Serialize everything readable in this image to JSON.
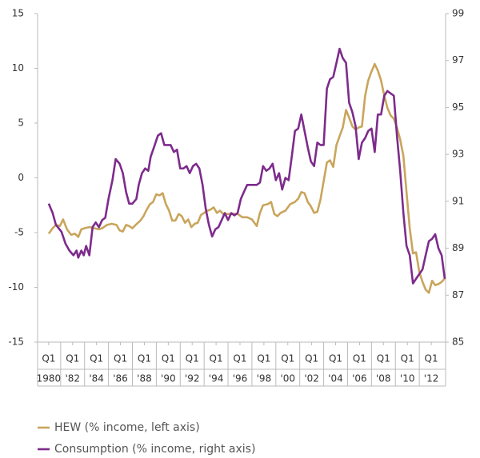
{
  "chart_data": {
    "type": "line",
    "xlim": [
      1979.07,
      2013.2
    ],
    "xticks": [
      {
        "value": 1980,
        "label": "1980"
      },
      {
        "value": 1982,
        "label": "'82"
      },
      {
        "value": 1984,
        "label": "'84"
      },
      {
        "value": 1986,
        "label": "'86"
      },
      {
        "value": 1988,
        "label": "'88"
      },
      {
        "value": 1990,
        "label": "'90"
      },
      {
        "value": 1992,
        "label": "'92"
      },
      {
        "value": 1994,
        "label": "'94"
      },
      {
        "value": 1996,
        "label": "'96"
      },
      {
        "value": 1998,
        "label": "'98"
      },
      {
        "value": 2000,
        "label": "'00"
      },
      {
        "value": 2002,
        "label": "'02"
      },
      {
        "value": 2004,
        "label": "'04"
      },
      {
        "value": 2006,
        "label": "'06"
      },
      {
        "value": 2008,
        "label": "'08"
      },
      {
        "value": 2010,
        "label": "'10"
      },
      {
        "value": 2012,
        "label": "'12"
      }
    ],
    "xtick_sublabel": "Q1",
    "ylim": [
      -15,
      15
    ],
    "yticks": [
      -15,
      -10,
      -5,
      0,
      5,
      10,
      15
    ],
    "y2lim": [
      85,
      99
    ],
    "y2ticks": [
      85,
      87,
      89,
      91,
      93,
      95,
      97,
      99
    ],
    "series": [
      {
        "name": "HEW (% income, left axis)",
        "color": "#c9a55c",
        "axis": "y",
        "x": [
          1980.0,
          1980.33,
          1980.6,
          1980.93,
          1981.2,
          1981.53,
          1981.87,
          1982.2,
          1982.47,
          1982.73,
          1983.0,
          1983.4,
          1983.8,
          1984.2,
          1984.47,
          1984.87,
          1985.27,
          1985.67,
          1985.93,
          1986.2,
          1986.47,
          1986.73,
          1987.0,
          1987.27,
          1987.67,
          1987.93,
          1988.2,
          1988.47,
          1988.73,
          1989.0,
          1989.27,
          1989.53,
          1989.8,
          1990.07,
          1990.33,
          1990.6,
          1990.87,
          1991.13,
          1991.4,
          1991.67,
          1991.93,
          1992.2,
          1992.47,
          1992.73,
          1993.0,
          1993.27,
          1993.53,
          1993.8,
          1994.07,
          1994.33,
          1994.6,
          1995.0,
          1995.4,
          1995.8,
          1996.2,
          1996.6,
          1997.0,
          1997.4,
          1997.67,
          1997.93,
          1998.33,
          1998.6,
          1998.87,
          1999.13,
          1999.4,
          1999.8,
          2000.2,
          2000.6,
          2000.87,
          2001.13,
          2001.4,
          2001.67,
          2001.93,
          2002.2,
          2002.47,
          2002.73,
          2003.0,
          2003.27,
          2003.53,
          2003.8,
          2004.07,
          2004.33,
          2004.6,
          2004.87,
          2005.13,
          2005.4,
          2005.67,
          2005.93,
          2006.2,
          2006.47,
          2006.73,
          2007.0,
          2007.27,
          2007.53,
          2007.8,
          2008.07,
          2008.33,
          2008.6,
          2008.87,
          2009.13,
          2009.4,
          2009.67,
          2009.93,
          2010.2,
          2010.47,
          2010.73,
          2011.0,
          2011.27,
          2011.53,
          2011.8,
          2012.07,
          2012.33,
          2012.6,
          2012.87,
          2013.13
        ],
        "values": [
          -5.1,
          -4.6,
          -4.3,
          -4.4,
          -3.8,
          -4.7,
          -5.2,
          -5.1,
          -5.4,
          -4.7,
          -4.6,
          -4.5,
          -4.6,
          -4.7,
          -4.6,
          -4.3,
          -4.2,
          -4.3,
          -4.8,
          -4.9,
          -4.3,
          -4.4,
          -4.6,
          -4.3,
          -3.9,
          -3.5,
          -2.9,
          -2.4,
          -2.2,
          -1.5,
          -1.6,
          -1.4,
          -2.4,
          -3.0,
          -3.9,
          -3.9,
          -3.3,
          -3.5,
          -4.1,
          -3.8,
          -4.5,
          -4.2,
          -4.1,
          -3.4,
          -3.2,
          -3.0,
          -2.9,
          -2.7,
          -3.2,
          -3.0,
          -3.3,
          -3.3,
          -3.3,
          -3.3,
          -3.6,
          -3.6,
          -3.8,
          -4.4,
          -3.2,
          -2.5,
          -2.4,
          -2.2,
          -3.3,
          -3.5,
          -3.2,
          -3.0,
          -2.4,
          -2.2,
          -1.9,
          -1.3,
          -1.4,
          -2.2,
          -2.6,
          -3.2,
          -3.1,
          -2.0,
          -0.3,
          1.4,
          1.6,
          1.0,
          3.0,
          3.8,
          4.6,
          6.2,
          5.5,
          4.7,
          4.4,
          4.6,
          4.7,
          7.5,
          8.9,
          9.7,
          10.4,
          9.8,
          8.9,
          7.5,
          6.4,
          5.7,
          5.4,
          4.6,
          3.5,
          2.0,
          -1.3,
          -4.6,
          -6.9,
          -6.8,
          -8.6,
          -9.5,
          -10.2,
          -10.5,
          -9.4,
          -9.8,
          -9.7,
          -9.5,
          -9.2
        ]
      },
      {
        "name": "Consumption (% income, right axis)",
        "color": "#7d2b8c",
        "axis": "y2",
        "x": [
          1980.0,
          1980.33,
          1980.6,
          1981.07,
          1981.4,
          1981.73,
          1982.07,
          1982.33,
          1982.47,
          1982.73,
          1982.93,
          1983.13,
          1983.4,
          1983.67,
          1983.93,
          1984.2,
          1984.47,
          1984.73,
          1985.0,
          1985.33,
          1985.6,
          1985.93,
          1986.2,
          1986.47,
          1986.73,
          1987.0,
          1987.33,
          1987.53,
          1987.8,
          1988.07,
          1988.33,
          1988.53,
          1988.87,
          1989.13,
          1989.4,
          1989.67,
          1989.93,
          1990.2,
          1990.47,
          1990.73,
          1991.0,
          1991.27,
          1991.53,
          1991.8,
          1992.07,
          1992.33,
          1992.6,
          1992.87,
          1993.13,
          1993.4,
          1993.67,
          1993.93,
          1994.2,
          1994.47,
          1994.73,
          1995.0,
          1995.27,
          1995.53,
          1995.8,
          1996.07,
          1996.33,
          1996.6,
          1996.87,
          1997.13,
          1997.4,
          1997.67,
          1997.93,
          1998.2,
          1998.47,
          1998.73,
          1999.0,
          1999.27,
          1999.53,
          1999.8,
          2000.07,
          2000.33,
          2000.6,
          2000.87,
          2001.13,
          2001.4,
          2001.67,
          2001.93,
          2002.2,
          2002.47,
          2002.73,
          2003.0,
          2003.27,
          2003.53,
          2003.8,
          2004.07,
          2004.33,
          2004.6,
          2004.87,
          2005.13,
          2005.4,
          2005.67,
          2005.93,
          2006.2,
          2006.47,
          2006.73,
          2007.0,
          2007.27,
          2007.53,
          2007.8,
          2008.07,
          2008.33,
          2008.6,
          2008.87,
          2009.13,
          2009.4,
          2009.67,
          2009.93,
          2010.2,
          2010.47,
          2010.73,
          2011.0,
          2011.27,
          2011.53,
          2011.8,
          2012.07,
          2012.33,
          2012.6,
          2012.87,
          2013.13
        ],
        "values": [
          90.9,
          90.5,
          90.0,
          89.7,
          89.2,
          88.9,
          88.7,
          88.9,
          88.6,
          88.9,
          88.7,
          89.1,
          88.7,
          89.9,
          90.1,
          89.9,
          90.2,
          90.3,
          91.1,
          91.9,
          92.8,
          92.6,
          92.2,
          91.4,
          90.9,
          90.9,
          91.1,
          91.7,
          92.2,
          92.4,
          92.3,
          92.9,
          93.4,
          93.8,
          93.9,
          93.4,
          93.4,
          93.4,
          93.1,
          93.2,
          92.4,
          92.4,
          92.5,
          92.2,
          92.5,
          92.6,
          92.4,
          91.7,
          90.7,
          90.0,
          89.5,
          89.8,
          89.9,
          90.2,
          90.5,
          90.2,
          90.5,
          90.4,
          90.5,
          91.1,
          91.4,
          91.7,
          91.7,
          91.7,
          91.7,
          91.8,
          92.5,
          92.3,
          92.4,
          92.6,
          91.9,
          92.2,
          91.5,
          92.0,
          91.9,
          92.9,
          94.0,
          94.1,
          94.7,
          94.0,
          93.3,
          92.7,
          92.5,
          93.5,
          93.4,
          93.4,
          95.8,
          96.2,
          96.3,
          96.9,
          97.5,
          97.1,
          96.9,
          95.2,
          94.8,
          94.2,
          92.8,
          93.5,
          93.7,
          94.0,
          94.1,
          93.1,
          94.7,
          94.7,
          95.5,
          95.7,
          95.6,
          95.5,
          93.8,
          92.3,
          90.5,
          89.1,
          88.7,
          87.5,
          87.7,
          87.9,
          88.1,
          88.7,
          89.3,
          89.4,
          89.6,
          89.0,
          88.7,
          87.7
        ]
      }
    ]
  }
}
